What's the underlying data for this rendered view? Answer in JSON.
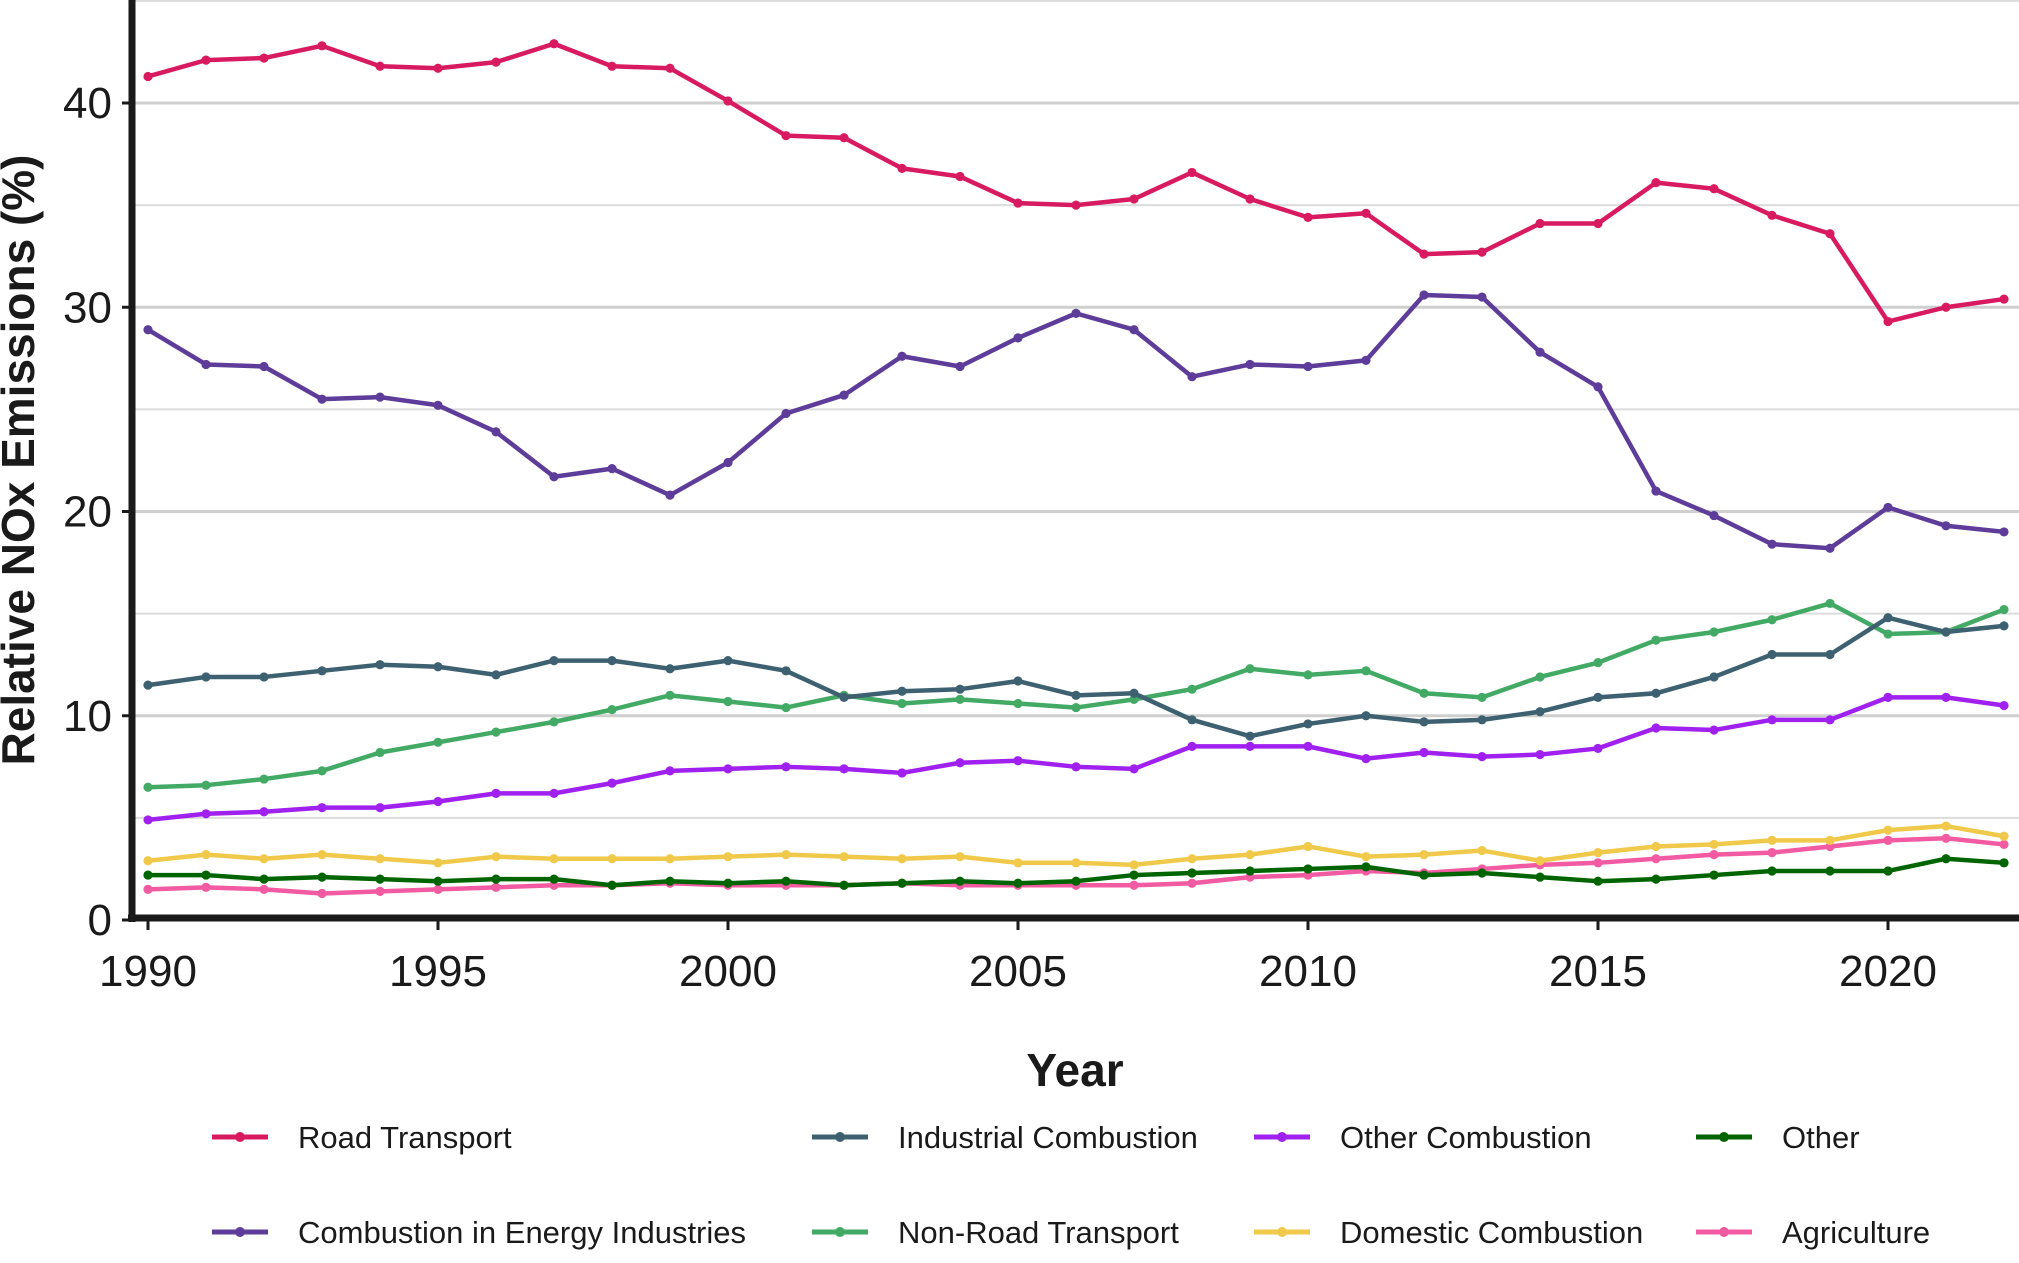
{
  "chart_data": {
    "type": "line",
    "title": "",
    "xlabel": "Year",
    "ylabel": "Relative NOx Emissions (%)",
    "xlim": [
      1990,
      2022
    ],
    "ylim": [
      0,
      45
    ],
    "x_ticks": [
      "1990",
      "1995",
      "2000",
      "2005",
      "2010",
      "2015",
      "2020"
    ],
    "y_ticks": [
      "0",
      "10",
      "20",
      "30",
      "40"
    ],
    "grid": "horizontal",
    "legend_position": "bottom",
    "x": [
      1990,
      1991,
      1992,
      1993,
      1994,
      1995,
      1996,
      1997,
      1998,
      1999,
      2000,
      2001,
      2002,
      2003,
      2004,
      2005,
      2006,
      2007,
      2008,
      2009,
      2010,
      2011,
      2012,
      2013,
      2014,
      2015,
      2016,
      2017,
      2018,
      2019,
      2020,
      2021,
      2022
    ],
    "series": [
      {
        "name": "Road Transport",
        "color": "#d81b60",
        "values": [
          41.3,
          42.1,
          42.2,
          42.8,
          41.8,
          41.7,
          42.0,
          42.9,
          41.8,
          41.7,
          40.1,
          38.4,
          38.3,
          36.8,
          36.4,
          35.1,
          35.0,
          35.3,
          36.6,
          35.3,
          34.4,
          34.6,
          32.6,
          32.7,
          34.1,
          34.1,
          36.1,
          35.8,
          34.5,
          33.6,
          29.3,
          30.0,
          30.4
        ]
      },
      {
        "name": "Combustion in Energy Industries",
        "color": "#5e3c99",
        "values": [
          28.9,
          27.2,
          27.1,
          25.5,
          25.6,
          25.2,
          23.9,
          21.7,
          22.1,
          20.8,
          22.4,
          24.8,
          25.7,
          27.6,
          27.1,
          28.5,
          29.7,
          28.9,
          26.6,
          27.2,
          27.1,
          27.4,
          30.6,
          30.5,
          27.8,
          26.1,
          21.0,
          19.8,
          18.4,
          18.2,
          20.2,
          19.3,
          19.0
        ]
      },
      {
        "name": "Industrial Combustion",
        "color": "#3e6171",
        "values": [
          11.5,
          11.9,
          11.9,
          12.2,
          12.5,
          12.4,
          12.0,
          12.7,
          12.7,
          12.3,
          12.7,
          12.2,
          10.9,
          11.2,
          11.3,
          11.7,
          11.0,
          11.1,
          9.8,
          9.0,
          9.6,
          10.0,
          9.7,
          9.8,
          10.2,
          10.9,
          11.1,
          11.9,
          13.0,
          13.0,
          14.8,
          14.1,
          14.4
        ]
      },
      {
        "name": "Non-Road Transport",
        "color": "#43aa65",
        "values": [
          6.5,
          6.6,
          6.9,
          7.3,
          8.2,
          8.7,
          9.2,
          9.7,
          10.3,
          11.0,
          10.7,
          10.4,
          11.0,
          10.6,
          10.8,
          10.6,
          10.4,
          10.8,
          11.3,
          12.3,
          12.0,
          12.2,
          11.1,
          10.9,
          11.9,
          12.6,
          13.7,
          14.1,
          14.7,
          15.5,
          14.0,
          14.1,
          15.2
        ]
      },
      {
        "name": "Other Combustion",
        "color": "#a020f0",
        "values": [
          4.9,
          5.2,
          5.3,
          5.5,
          5.5,
          5.8,
          6.2,
          6.2,
          6.7,
          7.3,
          7.4,
          7.5,
          7.4,
          7.2,
          7.7,
          7.8,
          7.5,
          7.4,
          8.5,
          8.5,
          8.5,
          7.9,
          8.2,
          8.0,
          8.1,
          8.4,
          9.4,
          9.3,
          9.8,
          9.8,
          10.9,
          10.9,
          10.5
        ]
      },
      {
        "name": "Domestic Combustion",
        "color": "#f0c94b",
        "values": [
          2.9,
          3.2,
          3.0,
          3.2,
          3.0,
          2.8,
          3.1,
          3.0,
          3.0,
          3.0,
          3.1,
          3.2,
          3.1,
          3.0,
          3.1,
          2.8,
          2.8,
          2.7,
          3.0,
          3.2,
          3.6,
          3.1,
          3.2,
          3.4,
          2.9,
          3.3,
          3.6,
          3.7,
          3.9,
          3.9,
          4.4,
          4.6,
          4.1
        ]
      },
      {
        "name": "Other",
        "color": "#006400",
        "values": [
          2.2,
          2.2,
          2.0,
          2.1,
          2.0,
          1.9,
          2.0,
          2.0,
          1.7,
          1.9,
          1.8,
          1.9,
          1.7,
          1.8,
          1.9,
          1.8,
          1.9,
          2.2,
          2.3,
          2.4,
          2.5,
          2.6,
          2.2,
          2.3,
          2.1,
          1.9,
          2.0,
          2.2,
          2.4,
          2.4,
          2.4,
          3.0,
          2.8
        ]
      },
      {
        "name": "Agriculture",
        "color": "#f25aa1",
        "values": [
          1.5,
          1.6,
          1.5,
          1.3,
          1.4,
          1.5,
          1.6,
          1.7,
          1.7,
          1.8,
          1.7,
          1.7,
          1.7,
          1.8,
          1.7,
          1.7,
          1.7,
          1.7,
          1.8,
          2.1,
          2.2,
          2.4,
          2.3,
          2.5,
          2.7,
          2.8,
          3.0,
          3.2,
          3.3,
          3.6,
          3.9,
          4.0,
          3.7
        ]
      }
    ]
  },
  "legend": {
    "items": [
      "Road Transport",
      "Industrial Combustion",
      "Other Combustion",
      "Other",
      "Combustion in Energy Industries",
      "Non-Road Transport",
      "Domestic Combustion",
      "Agriculture"
    ],
    "colors": [
      "#d81b60",
      "#3e6171",
      "#a020f0",
      "#006400",
      "#5e3c99",
      "#43aa65",
      "#f0c94b",
      "#f25aa1"
    ]
  }
}
